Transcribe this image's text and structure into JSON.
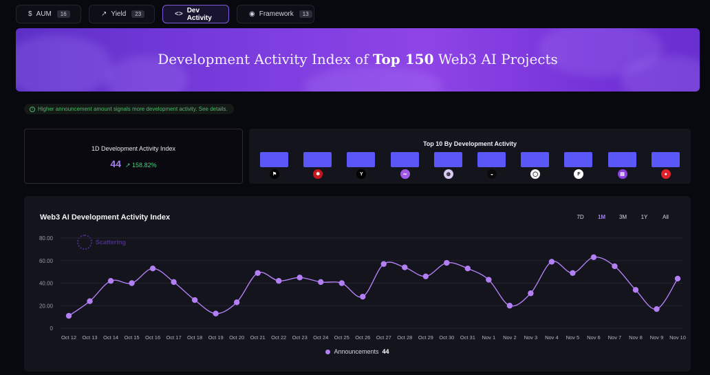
{
  "tabs": [
    {
      "icon": "$",
      "label": "AUM",
      "count": "16"
    },
    {
      "icon": "↗",
      "label": "Yield",
      "count": "23"
    },
    {
      "icon": "<>",
      "label": "Dev Activity",
      "count": ""
    },
    {
      "icon": "◉",
      "label": "Framework",
      "count": "13"
    }
  ],
  "banner": {
    "prefix": "Development Activity Index of ",
    "highlight": "Top 150",
    "suffix": " Web3 AI Projects"
  },
  "notice": "Higher announcement amount signals more development activity. See details.",
  "index_card": {
    "label": "1D Development Activity Index",
    "value": "44",
    "change": "158.82%"
  },
  "top10": {
    "title": "Top 10 By Development Activity",
    "logos": [
      {
        "name": "project-1-logo",
        "glyph": "⚑",
        "color": "#000000"
      },
      {
        "name": "project-2-logo",
        "glyph": "✱",
        "color": "#c4161c"
      },
      {
        "name": "project-3-logo",
        "glyph": "Y",
        "color": "#000000"
      },
      {
        "name": "project-4-logo",
        "glyph": "∞",
        "color": "#a259e8"
      },
      {
        "name": "project-5-logo",
        "glyph": "◍",
        "color": "#d6c9f4"
      },
      {
        "name": "project-6-logo",
        "glyph": "◒",
        "color": "#0a0a0a"
      },
      {
        "name": "project-7-logo",
        "glyph": "◯",
        "color": "#f2f2f2"
      },
      {
        "name": "project-8-logo",
        "glyph": "F",
        "color": "#ffffff"
      },
      {
        "name": "project-9-logo",
        "glyph": "▤",
        "color": "#8b3fe0"
      },
      {
        "name": "project-10-logo",
        "glyph": "●",
        "color": "#e0202a"
      }
    ]
  },
  "chart_section": {
    "title": "Web3 AI Development Activity Index",
    "ranges": [
      "7D",
      "1M",
      "3M",
      "1Y",
      "All"
    ],
    "active_range": "1M",
    "watermark": "Scattering",
    "legend_label": "Announcements",
    "legend_value": "44"
  },
  "chart_data": {
    "type": "line",
    "x": [
      "Oct 12",
      "Oct 13",
      "Oct 14",
      "Oct 15",
      "Oct 16",
      "Oct 17",
      "Oct 18",
      "Oct 19",
      "Oct 20",
      "Oct 21",
      "Oct 22",
      "Oct 23",
      "Oct 24",
      "Oct 25",
      "Oct 26",
      "Oct 27",
      "Oct 28",
      "Oct 29",
      "Oct 30",
      "Oct 31",
      "Nov 1",
      "Nov 2",
      "Nov 3",
      "Nov 4",
      "Nov 5",
      "Nov 6",
      "Nov 7",
      "Nov 8",
      "Nov 9",
      "Nov 10"
    ],
    "series": [
      {
        "name": "Announcements",
        "values": [
          11,
          24,
          42,
          40,
          53,
          41,
          25,
          13,
          23,
          49,
          42,
          45,
          41,
          40,
          28,
          57,
          54,
          46,
          58,
          53,
          43,
          20,
          31,
          59,
          49,
          63,
          55,
          34,
          17,
          44
        ]
      }
    ],
    "y_ticks": [
      "0",
      "20.00",
      "40.00",
      "60.00",
      "80.00"
    ],
    "ylim": [
      0,
      80
    ],
    "grid": true,
    "color": "#b37ff5"
  }
}
